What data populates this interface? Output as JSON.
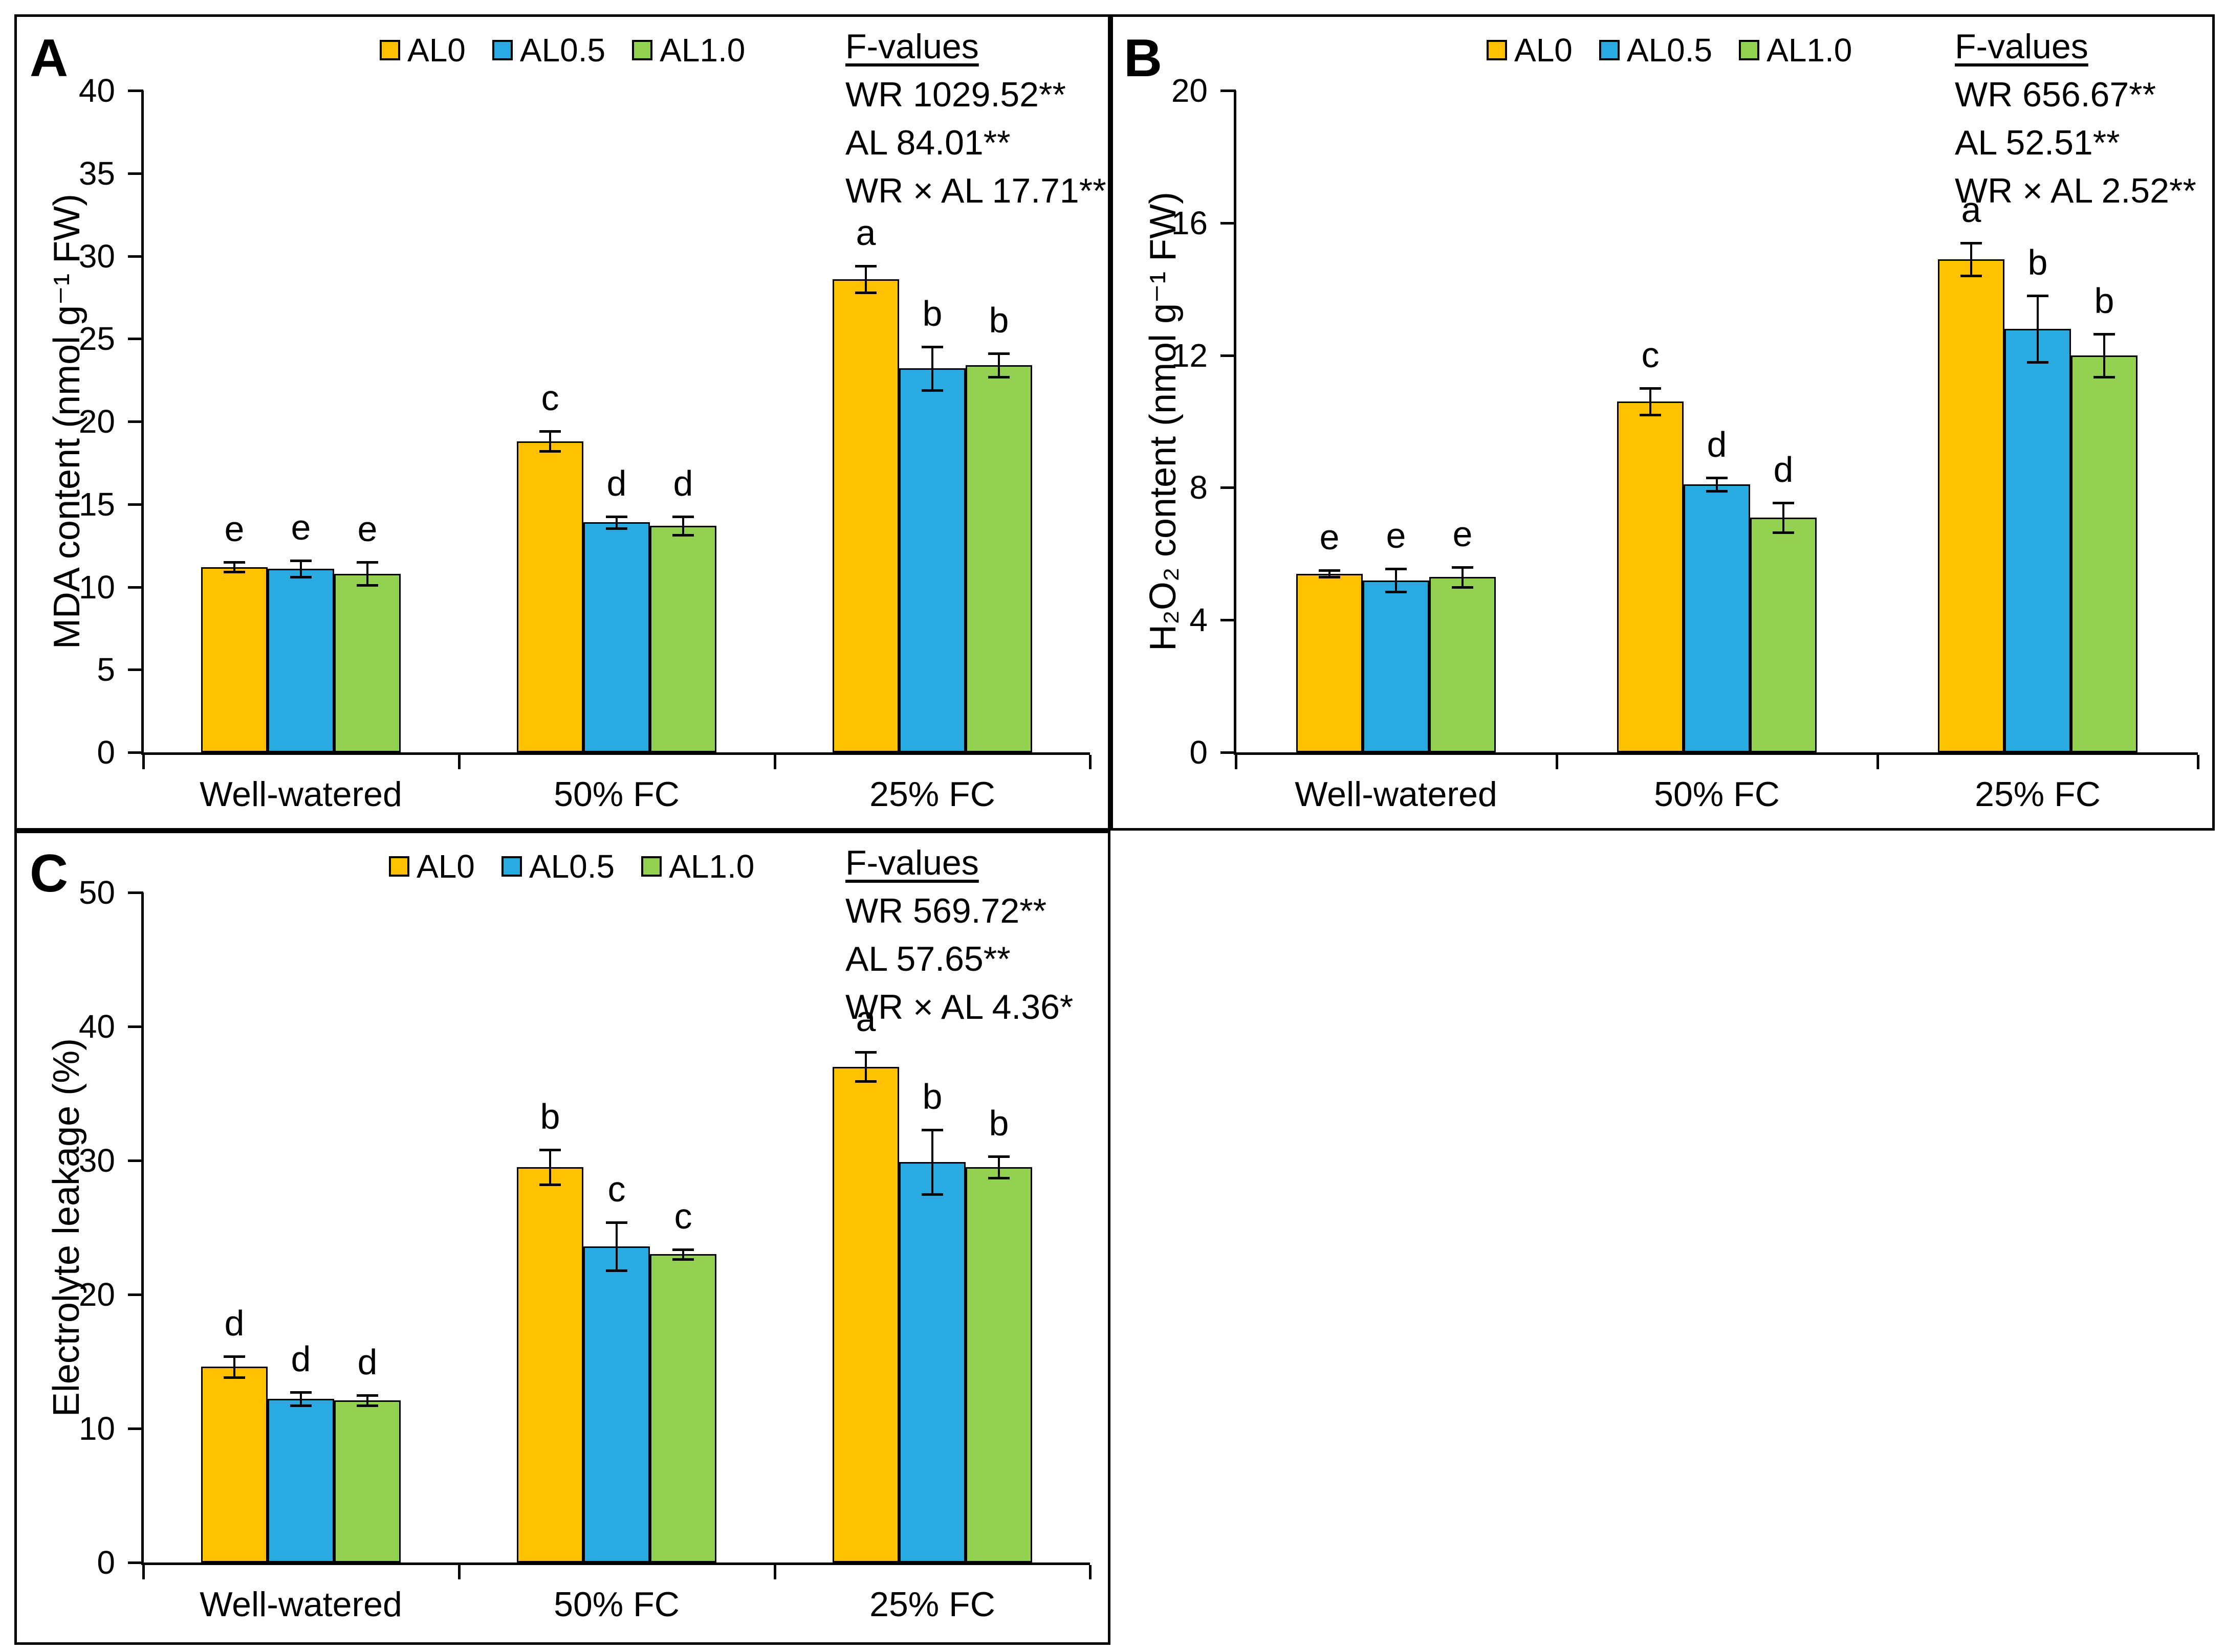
{
  "figure": {
    "background": "#ffffff",
    "series_colors": {
      "AL0": "#FFC000",
      "AL0.5": "#29ABE2",
      "AL1.0": "#92D050"
    }
  },
  "legend": {
    "items": [
      {
        "label": "AL0",
        "color": "#FFC000"
      },
      {
        "label": "AL0.5",
        "color": "#29ABE2"
      },
      {
        "label": "AL1.0",
        "color": "#92D050"
      }
    ]
  },
  "chart_data": [
    {
      "type": "bar",
      "panel_label": "A",
      "ylabel": "MDA content (nmol g⁻¹ FW)",
      "xlabel": "",
      "ylim": [
        0,
        40
      ],
      "yticks": [
        0,
        5,
        10,
        15,
        20,
        25,
        30,
        35,
        40
      ],
      "grid": false,
      "legend_position": "top-center",
      "categories": [
        "Well-watered",
        "50% FC",
        "25% FC"
      ],
      "series": [
        {
          "name": "AL0",
          "color": "#FFC000",
          "values": [
            11.2,
            18.8,
            28.6
          ],
          "errors": [
            0.3,
            0.6,
            0.8
          ],
          "letters": [
            "e",
            "c",
            "a"
          ]
        },
        {
          "name": "AL0.5",
          "color": "#29ABE2",
          "values": [
            11.1,
            13.9,
            23.2
          ],
          "errors": [
            0.5,
            0.35,
            1.3
          ],
          "letters": [
            "e",
            "d",
            "b"
          ]
        },
        {
          "name": "AL1.0",
          "color": "#92D050",
          "values": [
            10.8,
            13.7,
            23.4
          ],
          "errors": [
            0.7,
            0.55,
            0.7
          ],
          "letters": [
            "e",
            "d",
            "b"
          ]
        }
      ],
      "f_values": {
        "title": "F-values",
        "lines": [
          "WR 1029.52**",
          "AL 84.01**",
          "WR × AL 17.71**"
        ]
      }
    },
    {
      "type": "bar",
      "panel_label": "B",
      "ylabel": "H₂O₂ content (nmol g⁻¹ FW)",
      "xlabel": "",
      "ylim": [
        0,
        20
      ],
      "yticks": [
        0,
        4,
        8,
        12,
        16,
        20
      ],
      "grid": false,
      "legend_position": "top-center",
      "categories": [
        "Well-watered",
        "50% FC",
        "25% FC"
      ],
      "series": [
        {
          "name": "AL0",
          "color": "#FFC000",
          "values": [
            5.4,
            10.6,
            14.9
          ],
          "errors": [
            0.1,
            0.4,
            0.5
          ],
          "letters": [
            "e",
            "c",
            "a"
          ]
        },
        {
          "name": "AL0.5",
          "color": "#29ABE2",
          "values": [
            5.2,
            8.1,
            12.8
          ],
          "errors": [
            0.35,
            0.2,
            1.0
          ],
          "letters": [
            "e",
            "d",
            "b"
          ]
        },
        {
          "name": "AL1.0",
          "color": "#92D050",
          "values": [
            5.3,
            7.1,
            12.0
          ],
          "errors": [
            0.3,
            0.45,
            0.65
          ],
          "letters": [
            "e",
            "d",
            "b"
          ]
        }
      ],
      "f_values": {
        "title": "F-values",
        "lines": [
          "WR 656.67**",
          "AL 52.51**",
          "WR × AL 2.52**"
        ]
      }
    },
    {
      "type": "bar",
      "panel_label": "C",
      "ylabel": "Electrolyte leakage (%)",
      "xlabel": "",
      "ylim": [
        0,
        50
      ],
      "yticks": [
        0,
        10,
        20,
        30,
        40,
        50
      ],
      "grid": false,
      "legend_position": "top-center",
      "categories": [
        "Well-watered",
        "50% FC",
        "25% FC"
      ],
      "series": [
        {
          "name": "AL0",
          "color": "#FFC000",
          "values": [
            14.6,
            29.5,
            37.0
          ],
          "errors": [
            0.8,
            1.3,
            1.1
          ],
          "letters": [
            "d",
            "b",
            "a"
          ]
        },
        {
          "name": "AL0.5",
          "color": "#29ABE2",
          "values": [
            12.2,
            23.6,
            29.9
          ],
          "errors": [
            0.5,
            1.8,
            2.4
          ],
          "letters": [
            "d",
            "c",
            "b"
          ]
        },
        {
          "name": "AL1.0",
          "color": "#92D050",
          "values": [
            12.1,
            23.0,
            29.5
          ],
          "errors": [
            0.4,
            0.35,
            0.8
          ],
          "letters": [
            "d",
            "c",
            "b"
          ]
        }
      ],
      "f_values": {
        "title": "F-values",
        "lines": [
          "WR 569.72**",
          "AL 57.65**",
          "WR × AL 4.36*"
        ]
      }
    }
  ]
}
